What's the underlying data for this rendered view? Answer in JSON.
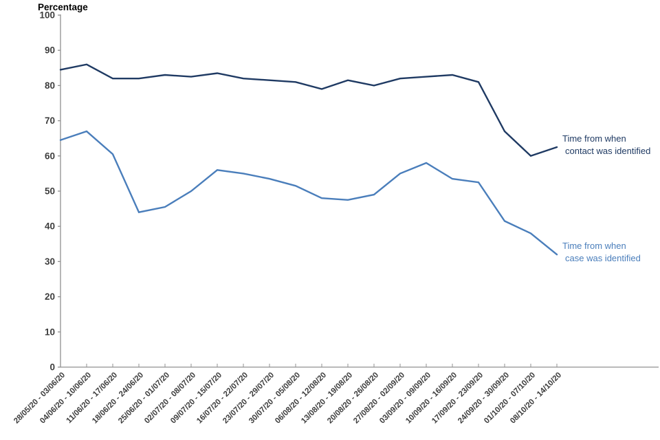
{
  "chart_data": {
    "type": "line",
    "title": "Percentage",
    "ylabel": "Percentage",
    "xlabel": "",
    "ylim": [
      0,
      100
    ],
    "yticks": [
      0,
      10,
      20,
      30,
      40,
      50,
      60,
      70,
      80,
      90,
      100
    ],
    "grid": false,
    "legend_position": "line-end-annotations",
    "axis_color": "#909090",
    "tick_label_color": "#3d3d3d",
    "categories": [
      "28/05/20 - 03/06/20",
      "04/06/20 - 10/06/20",
      "11/06/20 - 17/06/20",
      "18/06/20 - 24/06/20",
      "25/06/20 - 01/07/20",
      "02/07/20 - 08/07/20",
      "09/07/20 - 15/07/20",
      "16/07/20 - 22/07/20",
      "23/07/20 - 29/07/20",
      "30/07/20 - 05/08/20",
      "06/08/20 - 12/08/20",
      "13/08/20 - 19/08/20",
      "20/08/20 - 26/08/20",
      "27/08/20 - 02/09/20",
      "03/09/20 - 09/09/20",
      "10/09/20 - 16/09/20",
      "17/09/20 - 23/09/20",
      "24/09/20 - 30/09/20",
      "01/10/20 - 07/10/20",
      "08/10/20 - 14/10/20"
    ],
    "series": [
      {
        "name": "Time from when contact was identified",
        "label_lines": [
          "Time from when",
          "contact was identified"
        ],
        "color": "#1f3a63",
        "values": [
          84.5,
          86,
          82,
          82,
          83,
          82.5,
          83.5,
          82,
          81.5,
          81,
          79,
          81.5,
          80,
          82,
          82.5,
          83,
          81,
          67,
          60,
          62.5
        ]
      },
      {
        "name": "Time from when case was identified",
        "label_lines": [
          "Time from when",
          "case was identified"
        ],
        "color": "#4a7ebb",
        "values": [
          64.5,
          67,
          60.5,
          44,
          45.5,
          50,
          56,
          55,
          53.5,
          51.5,
          48,
          47.5,
          49,
          55,
          58,
          53.5,
          52.5,
          41.5,
          38,
          32
        ]
      }
    ]
  }
}
